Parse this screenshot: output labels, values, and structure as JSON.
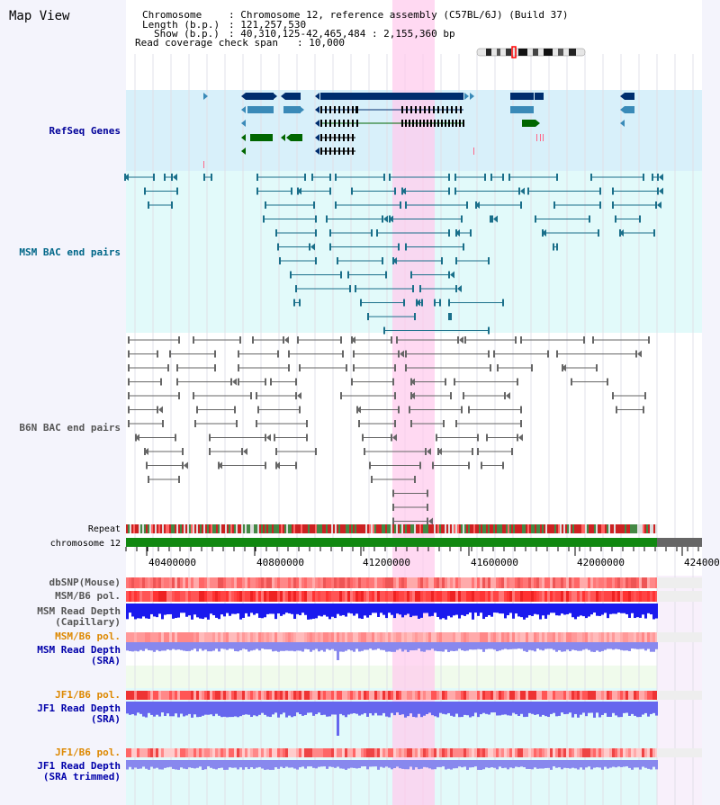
{
  "page": {
    "title": "Map View"
  },
  "header": {
    "chromosome_key": "Chromosome",
    "chromosome_value": ": Chromosome 12, reference assembly (C57BL/6J) (Build 37)",
    "length_key": "Length (b.p.)",
    "length_value": ": 121,257,530",
    "show_key": "Show (b.p.)",
    "show_value": ": 40,310,125-42,465,484 : 2,155,360 bp",
    "coverage_key": "Read coverage check span",
    "coverage_value": ": 10,000"
  },
  "tracks": {
    "refseq": "RefSeq Genes",
    "msm_bac": "MSM BAC end pairs",
    "b6n_bac": "B6N BAC end pairs",
    "repeat": "Repeat",
    "chromosome": "chromosome 12",
    "dbsnp": "dbSNP(Mouse)",
    "msm_b6_pol_1": "MSM/B6 pol.",
    "msm_depth_cap_1": "MSM Read Depth",
    "msm_depth_cap_2": "(Capillary)",
    "msm_b6_pol_2": "MSM/B6 pol.",
    "msm_depth_sra_1": "MSM Read Depth",
    "msm_depth_sra_2": "(SRA)",
    "jf1_pol_1": "JF1/B6 pol.",
    "jf1_depth_sra_1": "JF1 Read Depth",
    "jf1_depth_sra_2": "(SRA)",
    "jf1_pol_2": "JF1/B6 pol.",
    "jf1_depth_trim_1": "JF1 Read Depth",
    "jf1_depth_trim_2": "(SRA trimmed)"
  },
  "ruler": {
    "ticks": [
      "40400000",
      "40800000",
      "41200000",
      "41600000",
      "42000000",
      "424000"
    ]
  },
  "colors": {
    "refseq_label": "#000099",
    "msm_label": "#006688",
    "b6n_label": "#555555",
    "pol_label": "#dd8800",
    "depth_label": "#0000aa",
    "gene_dark": "#002d6e",
    "gene_mid": "#3a8ab8",
    "gene_green": "#006600",
    "msm_line": "#1a6f8a",
    "b6n_line": "#666666",
    "highlight": "#ffccee",
    "refseq_bg": "#d8f0fa",
    "msm_bg": "#e2fafa",
    "chrom_green": "#118811",
    "chrom_gray": "#666666"
  }
}
